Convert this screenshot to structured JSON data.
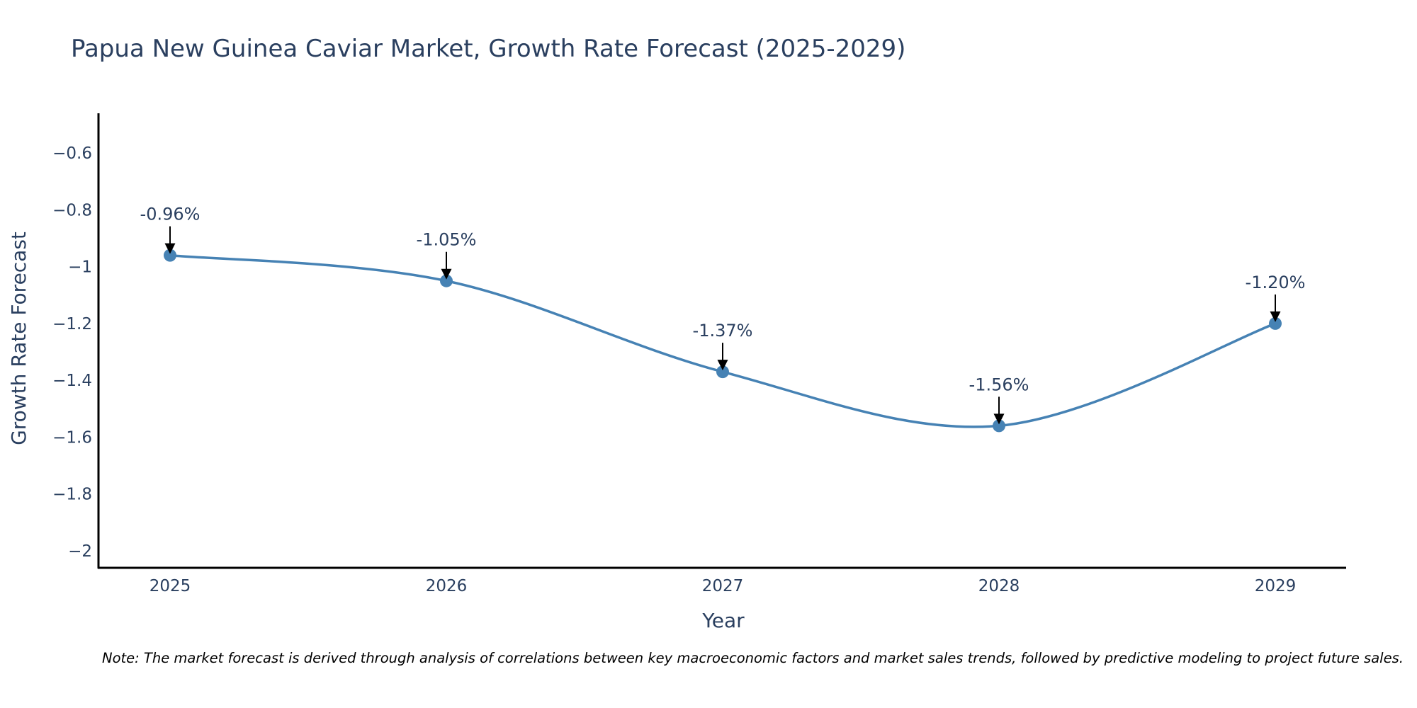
{
  "chart_data": {
    "type": "line",
    "title": "Papua New Guinea Caviar Market, Growth Rate Forecast (2025-2029)",
    "xlabel": "Year",
    "ylabel": "Growth Rate Forecast",
    "categories": [
      "2025",
      "2026",
      "2027",
      "2028",
      "2029"
    ],
    "values": [
      -0.96,
      -1.05,
      -1.37,
      -1.56,
      -1.2
    ],
    "data_labels": [
      "-0.96%",
      "-1.05%",
      "-1.37%",
      "-1.56%",
      "-1.20%"
    ],
    "ylim": [
      -2.06,
      -0.46
    ],
    "yticks": [
      -0.6,
      -0.8,
      -1,
      -1.2,
      -1.4,
      -1.6,
      -1.8,
      -2
    ],
    "ytick_labels": [
      "−0.6",
      "−0.8",
      "−1",
      "−1.2",
      "−1.4",
      "−1.6",
      "−1.8",
      "−2"
    ],
    "line_shape": "spline",
    "grid": false,
    "line_color": "#4682b4",
    "note": "Note: The market forecast is derived through analysis of correlations between key macroeconomic factors and market sales trends, followed by predictive modeling to project future sales."
  }
}
